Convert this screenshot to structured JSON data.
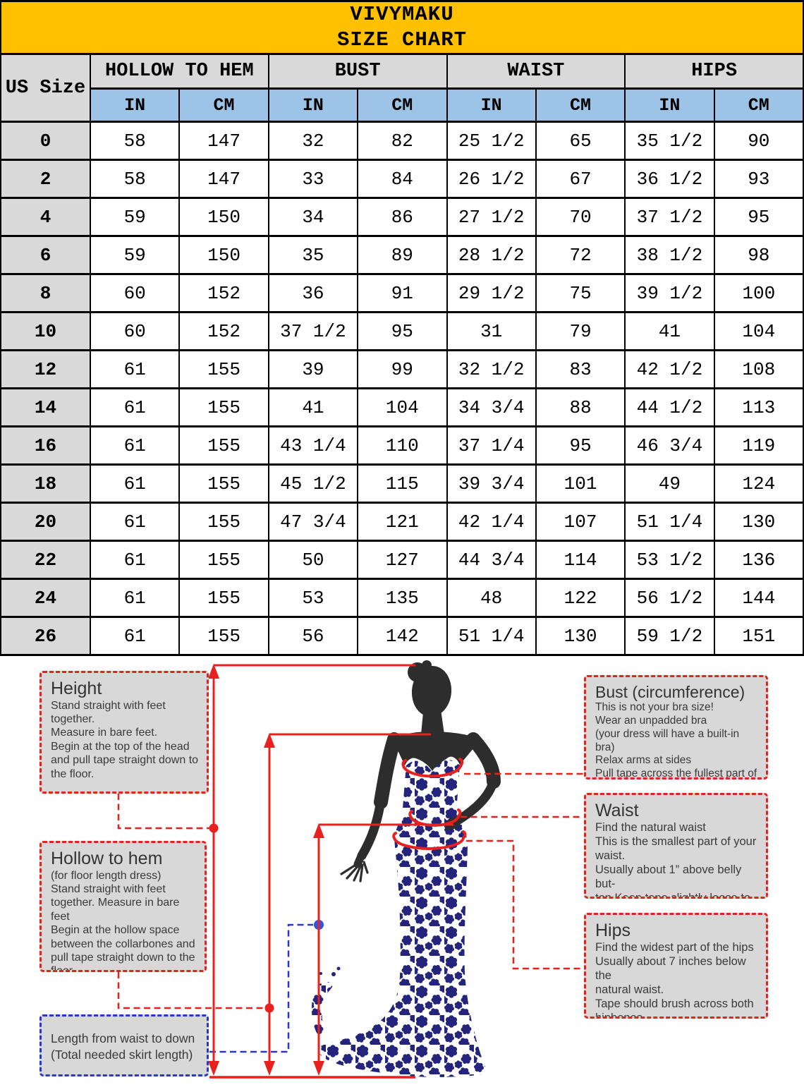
{
  "brand_header": {
    "brand": "VIVYMAKU",
    "subtitle": "SIZE CHART",
    "background": "#FFC000"
  },
  "size_table": {
    "corner_header": "US Size",
    "group_headers": [
      "HOLLOW TO HEM",
      "BUST",
      "WAIST",
      "HIPS"
    ],
    "unit_headers": [
      "IN",
      "CM",
      "IN",
      "CM",
      "IN",
      "CM",
      "IN",
      "CM"
    ],
    "rows": [
      {
        "size": "0",
        "values": [
          "58",
          "147",
          "32",
          "82",
          "25 1/2",
          "65",
          "35 1/2",
          "90"
        ]
      },
      {
        "size": "2",
        "values": [
          "58",
          "147",
          "33",
          "84",
          "26 1/2",
          "67",
          "36 1/2",
          "93"
        ]
      },
      {
        "size": "4",
        "values": [
          "59",
          "150",
          "34",
          "86",
          "27 1/2",
          "70",
          "37 1/2",
          "95"
        ]
      },
      {
        "size": "6",
        "values": [
          "59",
          "150",
          "35",
          "89",
          "28 1/2",
          "72",
          "38 1/2",
          "98"
        ]
      },
      {
        "size": "8",
        "values": [
          "60",
          "152",
          "36",
          "91",
          "29 1/2",
          "75",
          "39 1/2",
          "100"
        ]
      },
      {
        "size": "10",
        "values": [
          "60",
          "152",
          "37 1/2",
          "95",
          "31",
          "79",
          "41",
          "104"
        ]
      },
      {
        "size": "12",
        "values": [
          "61",
          "155",
          "39",
          "99",
          "32 1/2",
          "83",
          "42 1/2",
          "108"
        ]
      },
      {
        "size": "14",
        "values": [
          "61",
          "155",
          "41",
          "104",
          "34 3/4",
          "88",
          "44 1/2",
          "113"
        ]
      },
      {
        "size": "16",
        "values": [
          "61",
          "155",
          "43 1/4",
          "110",
          "37 1/4",
          "95",
          "46 3/4",
          "119"
        ]
      },
      {
        "size": "18",
        "values": [
          "61",
          "155",
          "45 1/2",
          "115",
          "39 3/4",
          "101",
          "49",
          "124"
        ]
      },
      {
        "size": "20",
        "values": [
          "61",
          "155",
          "47 3/4",
          "121",
          "42 1/4",
          "107",
          "51 1/4",
          "130"
        ]
      },
      {
        "size": "22",
        "values": [
          "61",
          "155",
          "50",
          "127",
          "44 3/4",
          "114",
          "53 1/2",
          "136"
        ]
      },
      {
        "size": "24",
        "values": [
          "61",
          "155",
          "53",
          "135",
          "48",
          "122",
          "56 1/2",
          "144"
        ]
      },
      {
        "size": "26",
        "values": [
          "61",
          "155",
          "56",
          "142",
          "51 1/4",
          "130",
          "59 1/2",
          "151"
        ]
      }
    ],
    "colors": {
      "banner_bg": "#FFC000",
      "header_bg": "#D9D9D9",
      "unit_bg": "#9DC3E6"
    }
  },
  "measurement_guide": {
    "boxes": {
      "height": {
        "title": "Height",
        "body": "Stand straight with feet\ntogether.\nMeasure in bare feet.\nBegin at the top of the head\nand pull tape straight down to\nthe floor."
      },
      "hollow_to_hem": {
        "title": "Hollow to hem",
        "body": "(for floor length dress)\nStand straight with feet\ntogether. Measure in bare feet\nBegin at the hollow space\nbetween the collarbones and\npull tape straight down to the\nfloor"
      },
      "waist_to_down": {
        "body": "Length from waist to down\n(Total needed skirt length)"
      },
      "bust": {
        "title": "Bust (circumference)",
        "body": "This is not your bra size!\nWear an unpadded bra\n(your dress will have a built-in bra)\nRelax arms at sides\nPull tape across the fullest part of\nthe bust"
      },
      "waist": {
        "title": "Waist",
        "body": "Find the natural waist\nThis is the smallest part of your\nwaist.\nUsually about 1” above belly but-\nton.Keep tape slightly loose to\nallow for breathing room."
      },
      "hips": {
        "title": "Hips",
        "body": "Find the widest part of the hips\nUsually about 7 inches below the\nnatural waist.\nTape should brush across both\nhipbones"
      }
    },
    "colors": {
      "annotation_red": "#E8211E",
      "annotation_blue": "#2B36CE",
      "box_bg": "#D8D8D8",
      "dress_navy": "#24247C",
      "body_dark": "#2D2D2D"
    }
  }
}
